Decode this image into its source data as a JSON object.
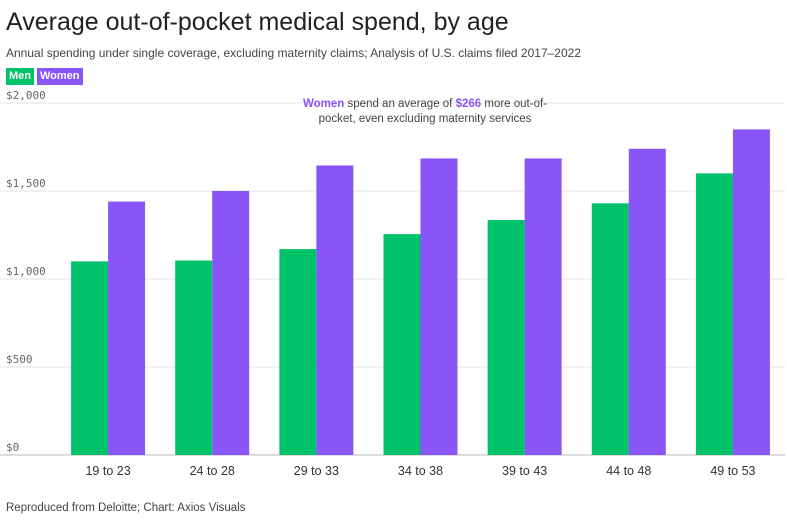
{
  "title": "Average out-of-pocket medical spend, by age",
  "subtitle": "Annual spending under single coverage, excluding maternity claims; Analysis of U.S. claims filed 2017–2022",
  "source": "Reproduced from Deloitte; Chart: Axios Visuals",
  "legend": {
    "men": "Men",
    "women": "Women"
  },
  "annotation": {
    "highlight_label": "Women",
    "text_a": " spend an average of ",
    "highlight_value": "$266",
    "text_b": " more out-of-pocket, even excluding maternity services"
  },
  "colors": {
    "men": "#00c26b",
    "women": "#8a55f7",
    "grid": "#e3e3e3"
  },
  "chart_data": {
    "type": "bar",
    "title": "Average out-of-pocket medical spend, by age",
    "categories": [
      "19 to 23",
      "24 to 28",
      "29 to 33",
      "34 to 38",
      "39 to 43",
      "44 to 48",
      "49 to 53"
    ],
    "series": [
      {
        "name": "Men",
        "values": [
          1100,
          1105,
          1170,
          1255,
          1335,
          1430,
          1600
        ]
      },
      {
        "name": "Women",
        "values": [
          1440,
          1500,
          1645,
          1685,
          1685,
          1740,
          1850
        ]
      }
    ],
    "ylim": [
      0,
      2000
    ],
    "yticks": [
      0,
      500,
      1000,
      1500,
      2000
    ],
    "ytick_labels": [
      "$0",
      "$500",
      "$1,000",
      "$1,500",
      "$2,000"
    ],
    "grid": true,
    "legend_position": "top-left"
  }
}
